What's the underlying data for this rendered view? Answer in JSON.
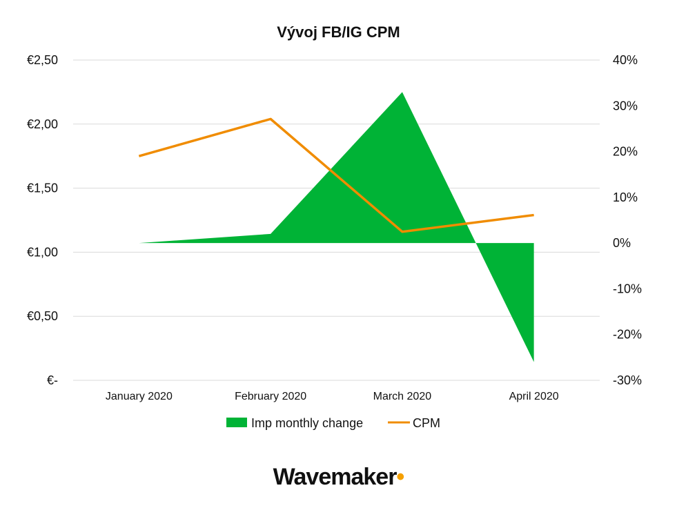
{
  "chart_data": {
    "type": "area+line",
    "title": "Vývoj FB/IG CPM",
    "categories": [
      "January 2020",
      "February 2020",
      "March 2020",
      "April 2020"
    ],
    "left_axis": {
      "ticks": [
        "€-",
        "€0,50",
        "€1,00",
        "€1,50",
        "€2,00",
        "€2,50"
      ],
      "tick_values": [
        0,
        0.5,
        1.0,
        1.5,
        2.0,
        2.5
      ],
      "range": [
        0,
        2.5
      ]
    },
    "right_axis": {
      "ticks": [
        "-30%",
        "-20%",
        "-10%",
        "0%",
        "10%",
        "20%",
        "30%",
        "40%"
      ],
      "tick_values": [
        -30,
        -20,
        -10,
        0,
        10,
        20,
        30,
        40
      ],
      "range": [
        -30,
        40
      ]
    },
    "series": [
      {
        "name": "Imp monthly change",
        "type": "area",
        "axis": "right",
        "unit": "%",
        "values": [
          0,
          2,
          33,
          -26
        ]
      },
      {
        "name": "CPM",
        "type": "line",
        "axis": "left",
        "unit": "€",
        "values": [
          1.75,
          2.04,
          1.16,
          1.29
        ]
      }
    ],
    "legend_position": "bottom",
    "grid": true
  },
  "colors": {
    "area": "#00b336",
    "line": "#f08c00",
    "grid": "#d9d9d9",
    "brand_dot": "#f5a000"
  },
  "brand": {
    "name": "Wavemaker",
    "dot": "•"
  }
}
